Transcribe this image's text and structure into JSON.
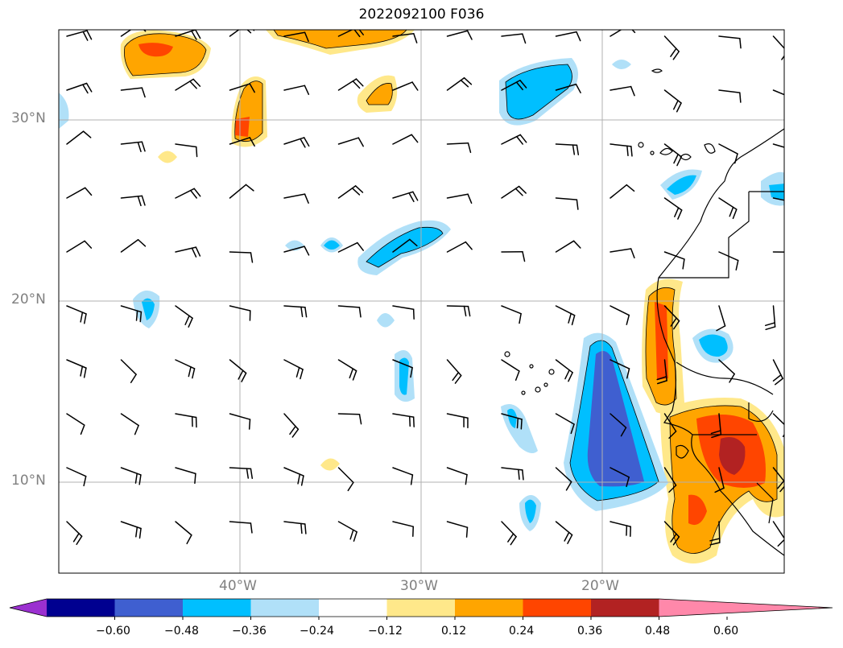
{
  "title": "2022092100 F036",
  "lat_labels": [
    "30°N",
    "20°N",
    "10°N"
  ],
  "lon_labels": [
    "40°W",
    "30°W",
    "20°W"
  ],
  "colorbar": {
    "ticks": [
      "−0.60",
      "−0.48",
      "−0.36",
      "−0.24",
      "−0.12",
      "0.12",
      "0.24",
      "0.36",
      "0.48",
      "0.60"
    ],
    "colors": [
      "#9b30d0",
      "#000090",
      "#3f5fd0",
      "#00bfff",
      "#b0e0f8",
      "#ffffff",
      "#ffe88a",
      "#ffa500",
      "#ff4500",
      "#b22222",
      "#ff88aa"
    ]
  },
  "map_extent": {
    "lon_min": -50,
    "lon_max": -10,
    "lat_min": 5,
    "lat_max": 35
  }
}
